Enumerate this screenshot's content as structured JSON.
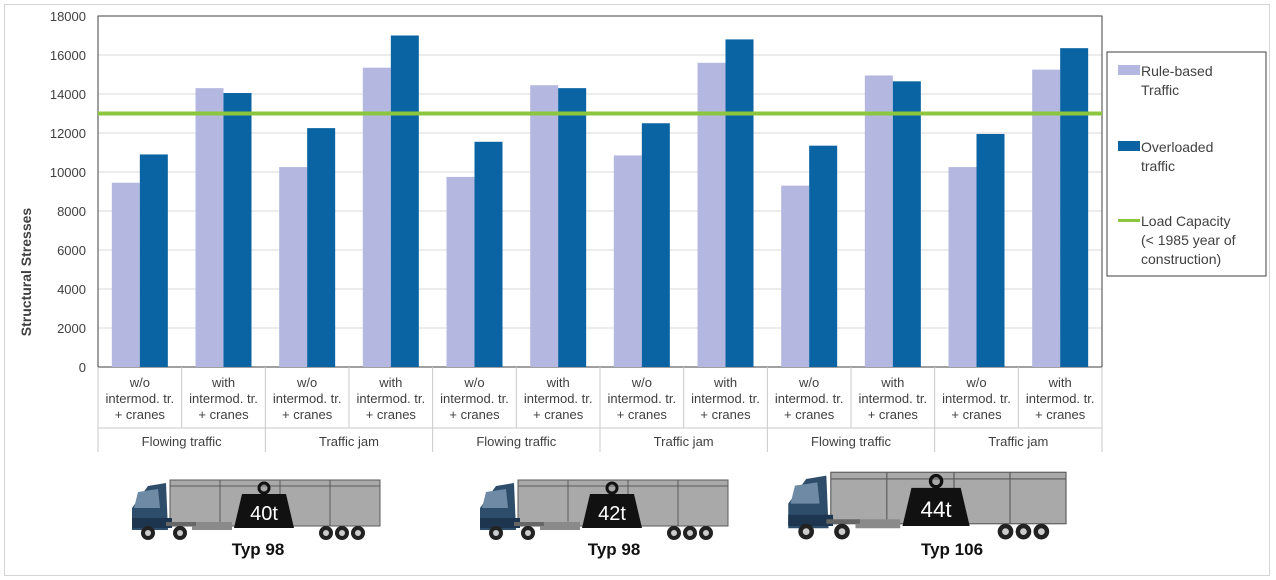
{
  "chart_data": {
    "type": "bar",
    "ylabel": "Structural Stresses",
    "ylim": [
      0,
      18000
    ],
    "yticks": [
      "0",
      "2000",
      "4000",
      "6000",
      "8000",
      "10000",
      "12000",
      "14000",
      "16000",
      "18000"
    ],
    "categories": [
      {
        "line1": "w/o",
        "line2": "intermod. tr.",
        "line3": "+ cranes"
      },
      {
        "line1": "with",
        "line2": "intermod. tr.",
        "line3": "+ cranes"
      },
      {
        "line1": "w/o",
        "line2": "intermod. tr.",
        "line3": "+ cranes"
      },
      {
        "line1": "with",
        "line2": "intermod. tr.",
        "line3": "+ cranes"
      },
      {
        "line1": "w/o",
        "line2": "intermod. tr.",
        "line3": "+ cranes"
      },
      {
        "line1": "with",
        "line2": "intermod. tr.",
        "line3": "+ cranes"
      },
      {
        "line1": "w/o",
        "line2": "intermod. tr.",
        "line3": "+ cranes"
      },
      {
        "line1": "with",
        "line2": "intermod. tr.",
        "line3": "+ cranes"
      },
      {
        "line1": "w/o",
        "line2": "intermod. tr.",
        "line3": "+ cranes"
      },
      {
        "line1": "with",
        "line2": "intermod. tr.",
        "line3": "+ cranes"
      },
      {
        "line1": "w/o",
        "line2": "intermod. tr.",
        "line3": "+ cranes"
      },
      {
        "line1": "with",
        "line2": "intermod. tr.",
        "line3": "+ cranes"
      }
    ],
    "groups": [
      "Flowing traffic",
      "Traffic jam",
      "Flowing traffic",
      "Traffic jam",
      "Flowing traffic",
      "Traffic jam"
    ],
    "series": [
      {
        "name": "Rule-based Traffic",
        "name_lines": [
          "Rule-based",
          "Traffic"
        ],
        "color": "#b4b8e0",
        "values": [
          9450,
          14300,
          10250,
          15350,
          9750,
          14450,
          10850,
          15600,
          9300,
          14950,
          10250,
          15250
        ]
      },
      {
        "name": "Overloaded traffic",
        "name_lines": [
          "Overloaded",
          "traffic"
        ],
        "color": "#0a63a2",
        "values": [
          10900,
          14050,
          12250,
          17000,
          11550,
          14300,
          12500,
          16800,
          11350,
          14650,
          11950,
          16350
        ]
      }
    ],
    "reference_line": {
      "name": "Load Capacity (< 1985 year of construction)",
      "name_lines": [
        "Load Capacity",
        "(< 1985 year of",
        "construction)"
      ],
      "value": 13000,
      "color": "#8cc63f"
    },
    "legend_position": "right",
    "grid": true
  },
  "trucks": [
    {
      "weight": "40t",
      "label": "Typ 98"
    },
    {
      "weight": "42t",
      "label": "Typ 98"
    },
    {
      "weight": "44t",
      "label": "Typ 106"
    }
  ]
}
